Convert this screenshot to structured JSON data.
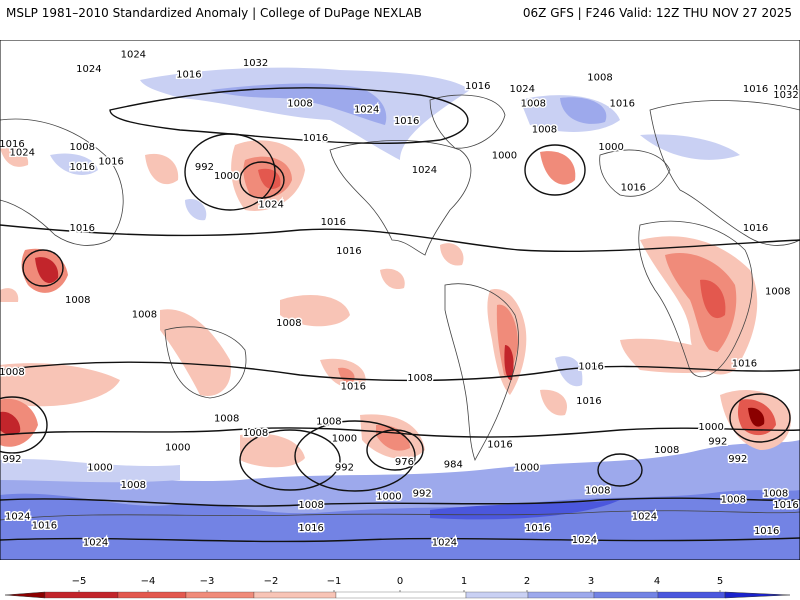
{
  "header": {
    "left_title": "MSLP 1981–2010 Standardized Anomaly | College of DuPage NEXLAB",
    "right_title": "06Z GFS | F246 Valid: 12Z THU NOV 27 2025"
  },
  "colors": {
    "neg5": "#8b0000",
    "neg4": "#c2252b",
    "neg3": "#e3584e",
    "neg2": "#f08b7a",
    "neg1": "#f8c4b6",
    "neutral": "#ffffff",
    "pos1": "#c9d0f3",
    "pos2": "#9da9ec",
    "pos3": "#7383e4",
    "pos4": "#4b57dd",
    "pos5": "#1a22cc",
    "land_outline": "#444444",
    "isobar": "#111111"
  },
  "colorbar": {
    "ticks": [
      "−5",
      "−4",
      "−3",
      "−2",
      "−1",
      "0",
      "1",
      "2",
      "3",
      "4",
      "5"
    ],
    "min": -5,
    "max": 5
  },
  "isobar_labels": [
    {
      "text": "1024",
      "lon": -85,
      "lat": 85
    },
    {
      "text": "1032",
      "lon": -30,
      "lat": 82
    },
    {
      "text": "1024",
      "lon": -105,
      "lat": 80
    },
    {
      "text": "1016",
      "lon": -60,
      "lat": 78
    },
    {
      "text": "1016",
      "lon": -165,
      "lat": 73
    },
    {
      "text": "1024",
      "lon": -150,
      "lat": 73
    },
    {
      "text": "1032",
      "lon": -148,
      "lat": 71
    },
    {
      "text": "1008",
      "lon": -10,
      "lat": 68
    },
    {
      "text": "1024",
      "lon": 20,
      "lat": 66
    },
    {
      "text": "1016",
      "lon": 38,
      "lat": 62
    },
    {
      "text": "1024",
      "lon": 90,
      "lat": 73
    },
    {
      "text": "1016",
      "lon": 70,
      "lat": 74
    },
    {
      "text": "1008",
      "lon": 125,
      "lat": 77
    },
    {
      "text": "1016",
      "lon": 135,
      "lat": 68
    },
    {
      "text": "1008",
      "lon": 95,
      "lat": 68
    },
    {
      "text": "1016",
      "lon": -3,
      "lat": 56
    },
    {
      "text": "1016",
      "lon": -145,
      "lat": 54
    },
    {
      "text": "1024",
      "lon": -135,
      "lat": 51
    },
    {
      "text": "1016",
      "lon": -95,
      "lat": 48
    },
    {
      "text": "1008",
      "lon": -108,
      "lat": 53
    },
    {
      "text": "1016",
      "lon": -108,
      "lat": 46
    },
    {
      "text": "992",
      "lon": -53,
      "lat": 46
    },
    {
      "text": "1000",
      "lon": -43,
      "lat": 43
    },
    {
      "text": "1024",
      "lon": 46,
      "lat": 45
    },
    {
      "text": "1000",
      "lon": 82,
      "lat": 50
    },
    {
      "text": "1008",
      "lon": 100,
      "lat": 59
    },
    {
      "text": "1000",
      "lon": 130,
      "lat": 53
    },
    {
      "text": "1016",
      "lon": 140,
      "lat": 39
    },
    {
      "text": "1024",
      "lon": -23,
      "lat": 33
    },
    {
      "text": "1016",
      "lon": -165,
      "lat": 25
    },
    {
      "text": "1016",
      "lon": -108,
      "lat": 25
    },
    {
      "text": "1016",
      "lon": 12,
      "lat": 17
    },
    {
      "text": "1016",
      "lon": 5,
      "lat": 27
    },
    {
      "text": "1008",
      "lon": -155,
      "lat": 3
    },
    {
      "text": "1008",
      "lon": -110,
      "lat": 0
    },
    {
      "text": "1008",
      "lon": -80,
      "lat": -5
    },
    {
      "text": "1008",
      "lon": -15,
      "lat": -8
    },
    {
      "text": "1016",
      "lon": -170,
      "lat": -22
    },
    {
      "text": "1008",
      "lon": -145,
      "lat": -25
    },
    {
      "text": "1016",
      "lon": 14,
      "lat": -30
    },
    {
      "text": "1008",
      "lon": 44,
      "lat": -27
    },
    {
      "text": "1016",
      "lon": 121,
      "lat": -23
    },
    {
      "text": "1016",
      "lon": 120,
      "lat": -35
    },
    {
      "text": "1008",
      "lon": -43,
      "lat": -41
    },
    {
      "text": "1008",
      "lon": -30,
      "lat": -46
    },
    {
      "text": "1008",
      "lon": 3,
      "lat": -42
    },
    {
      "text": "1000",
      "lon": -65,
      "lat": -51
    },
    {
      "text": "992",
      "lon": -143,
      "lat": -55
    },
    {
      "text": "1000",
      "lon": 10,
      "lat": -48
    },
    {
      "text": "992",
      "lon": 10,
      "lat": -58
    },
    {
      "text": "976",
      "lon": 37,
      "lat": -56
    },
    {
      "text": "984",
      "lon": 59,
      "lat": -57
    },
    {
      "text": "1016",
      "lon": 80,
      "lat": -50
    },
    {
      "text": "1000",
      "lon": 92,
      "lat": -58
    },
    {
      "text": "1000",
      "lon": -100,
      "lat": -58
    },
    {
      "text": "1008",
      "lon": -85,
      "lat": -64
    },
    {
      "text": "1000",
      "lon": 175,
      "lat": -44
    },
    {
      "text": "992",
      "lon": -173,
      "lat": -55
    },
    {
      "text": "1008",
      "lon": -156,
      "lat": -67
    },
    {
      "text": "1016",
      "lon": -150,
      "lat": -71
    },
    {
      "text": "1024",
      "lon": -137,
      "lat": -75
    },
    {
      "text": "1016",
      "lon": -125,
      "lat": -78
    },
    {
      "text": "992",
      "lon": 45,
      "lat": -67
    },
    {
      "text": "1000",
      "lon": 30,
      "lat": -68
    },
    {
      "text": "1008",
      "lon": -5,
      "lat": -71
    },
    {
      "text": "1016",
      "lon": -5,
      "lat": -79
    },
    {
      "text": "1008",
      "lon": 124,
      "lat": -66
    },
    {
      "text": "1016",
      "lon": 97,
      "lat": -79
    },
    {
      "text": "1024",
      "lon": 145,
      "lat": -75
    },
    {
      "text": "1024",
      "lon": 118,
      "lat": -83
    },
    {
      "text": "1024",
      "lon": 55,
      "lat": -84
    },
    {
      "text": "1024",
      "lon": -102,
      "lat": -84
    },
    {
      "text": "1008",
      "lon": -175,
      "lat": -69
    },
    {
      "text": "1016",
      "lon": -160,
      "lat": -80
    },
    {
      "text": "1008",
      "lon": 155,
      "lat": -52
    },
    {
      "text": "992",
      "lon": 178,
      "lat": -49
    }
  ]
}
